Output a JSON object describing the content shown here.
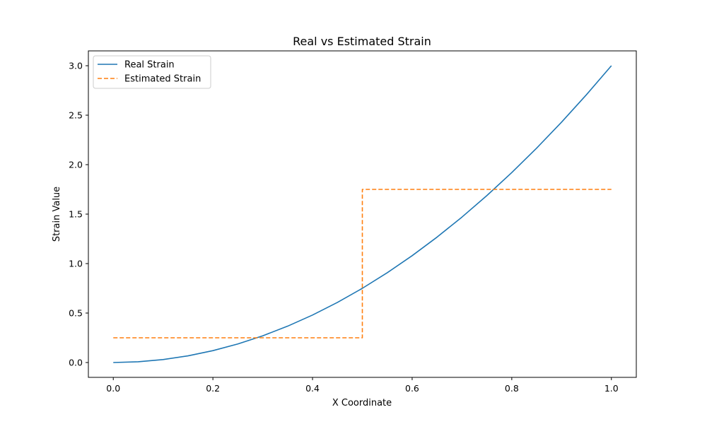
{
  "chart_data": {
    "type": "line",
    "title": "Real vs Estimated Strain",
    "xlabel": "X Coordinate",
    "ylabel": "Strain Value",
    "xlim": [
      -0.05,
      1.05
    ],
    "ylim": [
      -0.15,
      3.15
    ],
    "xticks": [
      0.0,
      0.2,
      0.4,
      0.6,
      0.8,
      1.0
    ],
    "xtick_labels": [
      "0.0",
      "0.2",
      "0.4",
      "0.6",
      "0.8",
      "1.0"
    ],
    "yticks": [
      0.0,
      0.5,
      1.0,
      1.5,
      2.0,
      2.5,
      3.0
    ],
    "ytick_labels": [
      "0.0",
      "0.5",
      "1.0",
      "1.5",
      "2.0",
      "2.5",
      "3.0"
    ],
    "grid": false,
    "legend_position": "top-left",
    "series": [
      {
        "name": "Real Strain",
        "style": "solid",
        "color": "#1f77b4",
        "x": [
          0.0,
          0.05,
          0.1,
          0.15,
          0.2,
          0.25,
          0.3,
          0.35,
          0.4,
          0.45,
          0.5,
          0.55,
          0.6,
          0.65,
          0.7,
          0.75,
          0.8,
          0.85,
          0.9,
          0.95,
          1.0
        ],
        "y": [
          0.0,
          0.0075,
          0.03,
          0.0675,
          0.12,
          0.1875,
          0.27,
          0.3675,
          0.48,
          0.6075,
          0.75,
          0.9075,
          1.08,
          1.2675,
          1.47,
          1.6875,
          1.92,
          2.1675,
          2.43,
          2.7075,
          3.0
        ]
      },
      {
        "name": "Estimated Strain",
        "style": "dashed",
        "color": "#ff7f0e",
        "x": [
          0.0,
          0.5,
          0.5,
          1.0
        ],
        "y": [
          0.25,
          0.25,
          1.75,
          1.75
        ]
      }
    ]
  }
}
